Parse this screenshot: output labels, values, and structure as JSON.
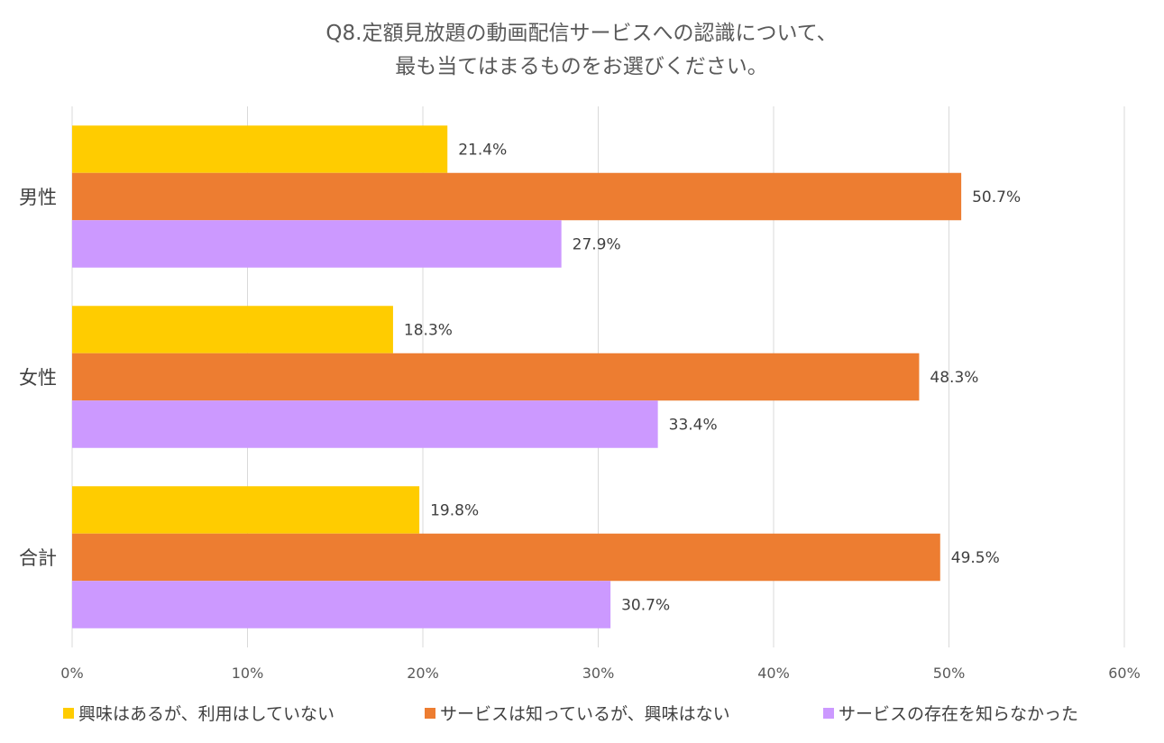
{
  "chart_data": {
    "type": "bar",
    "orientation": "horizontal",
    "title": [
      "Q8.定額見放題の動画配信サービスへの認識について、",
      "最も当てはまるものをお選びください。"
    ],
    "categories": [
      "男性",
      "女性",
      "合計"
    ],
    "series": [
      {
        "name": "興味はあるが、利用はしていない",
        "color": "#FFCC00",
        "values": [
          21.4,
          18.3,
          19.8
        ],
        "labels": [
          "21.4%",
          "18.3%",
          "19.8%"
        ]
      },
      {
        "name": "サービスは知っているが、興味はない",
        "color": "#ED7D31",
        "values": [
          50.7,
          48.3,
          49.5
        ],
        "labels": [
          "50.7%",
          "48.3%",
          "49.5%"
        ]
      },
      {
        "name": "サービスの存在を知らなかった",
        "color": "#CC99FF",
        "values": [
          27.9,
          33.4,
          30.7
        ],
        "labels": [
          "27.9%",
          "33.4%",
          "30.7%"
        ]
      }
    ],
    "xlim": [
      0,
      60
    ],
    "xticks": [
      "0%",
      "10%",
      "20%",
      "30%",
      "40%",
      "50%",
      "60%"
    ],
    "grid": true,
    "legend_position": "bottom"
  }
}
